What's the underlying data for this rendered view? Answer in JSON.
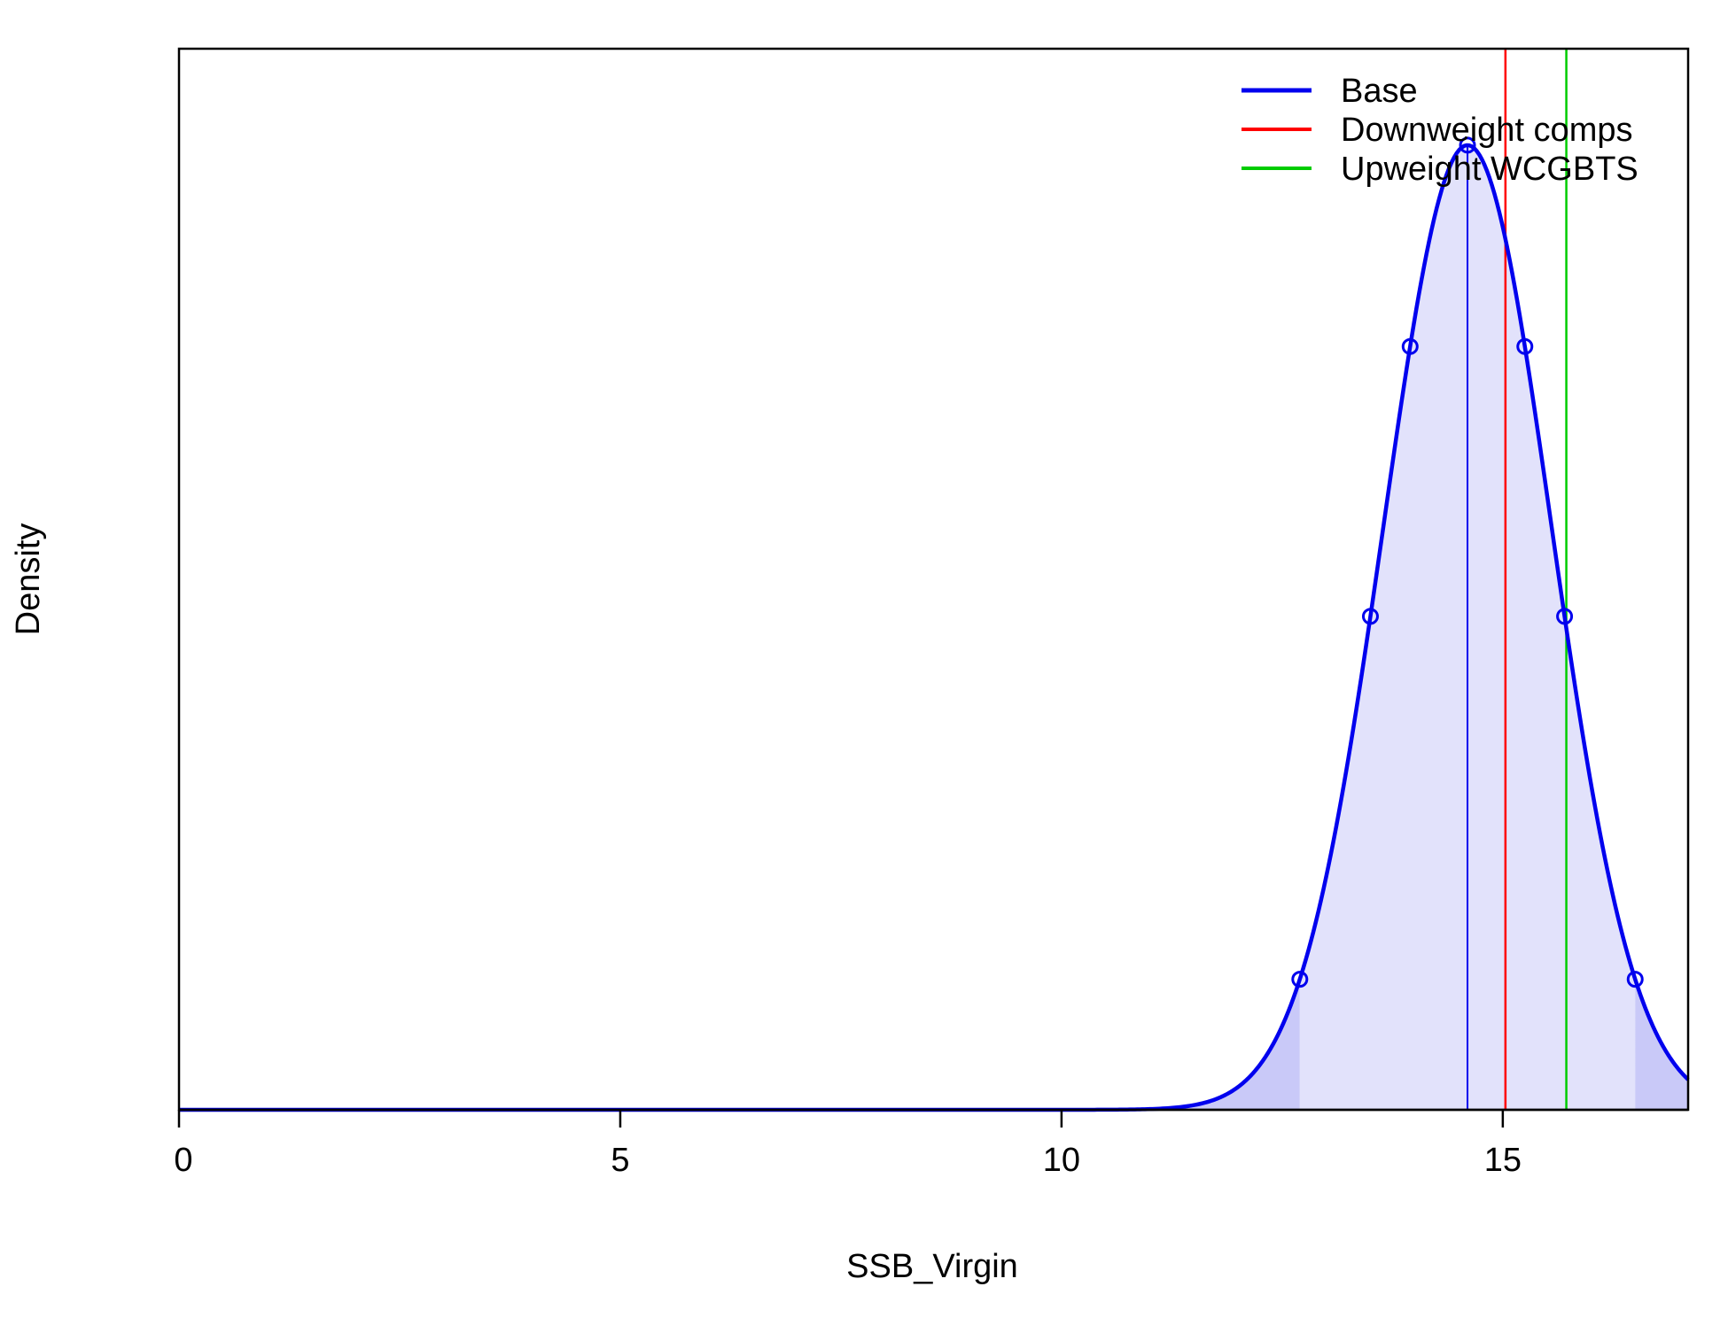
{
  "chart_data": {
    "type": "line",
    "title": "",
    "xlabel": "SSB_Virgin",
    "ylabel": "Density",
    "xlim": [
      0,
      17.1
    ],
    "ylim": [
      0,
      1.1
    ],
    "y_ticks_shown": false,
    "x_ticks": [
      0,
      5,
      10,
      15
    ],
    "x_tick_labels": [
      "0",
      "5",
      "10",
      "15"
    ],
    "grid": false,
    "legend_position": "top-right",
    "density": {
      "series": "Base",
      "mean": 14.6,
      "sd": 0.95,
      "peak_density": 1.0,
      "marked_points_x": [
        12.7,
        13.5,
        13.95,
        14.6,
        15.25,
        15.7,
        16.5
      ],
      "ci_lower": 12.7,
      "ci_upper": 16.5,
      "fill_colors": {
        "interval": "#e2e2fb",
        "tails": "#c9c9f8"
      }
    },
    "series": [
      {
        "name": "Base",
        "color": "#0000ee",
        "value": 14.6
      },
      {
        "name": "Downweight comps",
        "color": "#ff0000",
        "value": 15.03
      },
      {
        "name": "Upweight WCGBTS",
        "color": "#00cc00",
        "value": 15.72
      }
    ]
  }
}
